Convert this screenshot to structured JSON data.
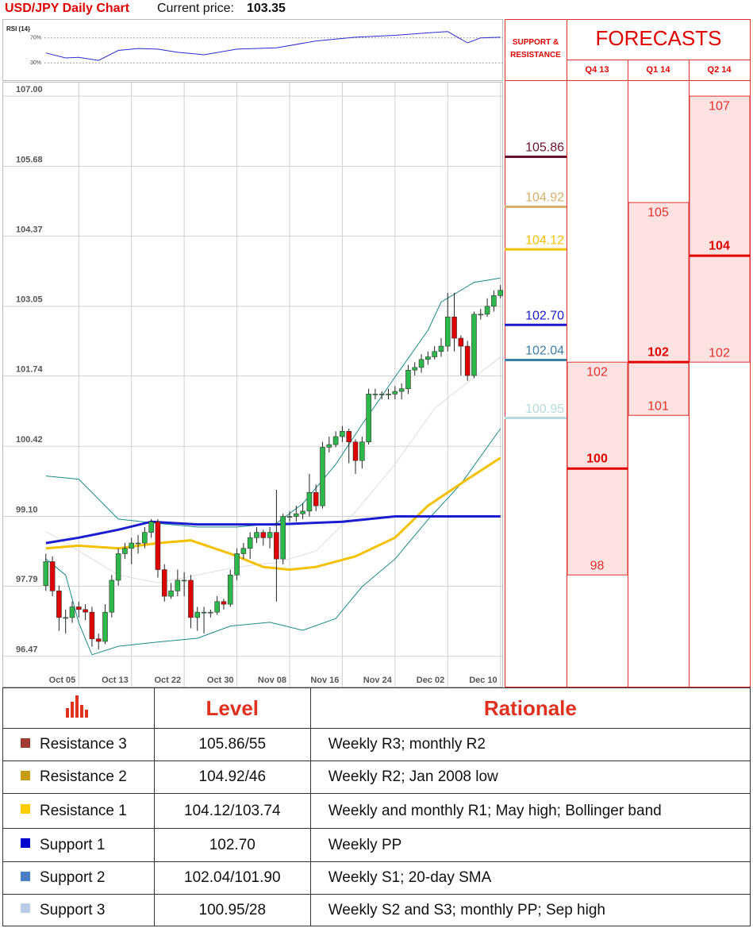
{
  "header": {
    "title": "USD/JPY Daily Chart",
    "price_label": "Current price:",
    "price": 103.35
  },
  "chart_data": [
    {
      "type": "candlestick",
      "categories": [
        null,
        null,
        null,
        null,
        null,
        "Oct 05",
        null,
        null,
        null,
        null,
        null,
        null,
        null,
        "Oct 13",
        null,
        null,
        null,
        null,
        null,
        null,
        null,
        "Oct 22",
        null,
        null,
        null,
        null,
        null,
        null,
        null,
        "Oct 30",
        null,
        null,
        null,
        null,
        null,
        null,
        null,
        "Nov 08",
        null,
        null,
        null,
        null,
        null,
        null,
        null,
        "Nov 16",
        null,
        null,
        null,
        null,
        null,
        null,
        null,
        "Nov 24",
        null,
        null,
        null,
        null,
        null,
        null,
        null,
        "Dec 02",
        null,
        null,
        null,
        null,
        null,
        null,
        null,
        "Dec 10"
      ],
      "open": [
        97.8,
        98.25,
        97.7,
        97.2,
        97.2,
        97.4,
        97.35,
        97.3,
        96.8,
        96.75,
        97.3,
        97.9,
        98.4,
        98.5,
        98.6,
        98.6,
        98.8,
        99.0,
        98.1,
        97.6,
        97.7,
        97.9,
        97.9,
        97.2,
        97.3,
        97.3,
        97.3,
        97.5,
        97.45,
        98.0,
        98.4,
        98.5,
        98.7,
        98.8,
        98.7,
        98.8,
        98.3,
        99.1,
        99.1,
        99.15,
        99.2,
        99.55,
        99.3,
        100.4,
        100.45,
        100.6,
        100.7,
        100.5,
        100.15,
        100.5,
        101.4,
        101.4,
        101.4,
        101.4,
        101.45,
        101.5,
        101.85,
        101.9,
        102.05,
        102.1,
        102.2,
        102.3,
        102.85,
        102.45,
        102.3,
        101.75,
        102.9,
        102.9,
        103.05,
        103.25
      ],
      "high": [
        98.4,
        98.35,
        97.8,
        97.35,
        97.5,
        97.5,
        97.45,
        97.4,
        96.9,
        97.45,
        98.0,
        98.5,
        98.6,
        98.7,
        98.75,
        98.9,
        99.05,
        99.05,
        98.2,
        97.85,
        98.1,
        98.05,
        98.0,
        97.4,
        97.4,
        97.35,
        97.6,
        97.55,
        98.1,
        98.5,
        98.6,
        98.8,
        98.9,
        98.85,
        98.9,
        99.6,
        99.15,
        99.2,
        99.3,
        99.35,
        99.9,
        99.7,
        100.5,
        100.6,
        100.7,
        100.8,
        100.75,
        100.55,
        100.6,
        101.5,
        101.5,
        101.45,
        101.5,
        101.55,
        101.6,
        101.95,
        102.0,
        102.15,
        102.2,
        102.3,
        102.45,
        103.3,
        103.3,
        102.5,
        102.4,
        102.95,
        103.0,
        103.2,
        103.35,
        103.45
      ],
      "low": [
        97.7,
        97.6,
        96.95,
        96.9,
        97.1,
        97.2,
        97.15,
        96.65,
        96.6,
        96.7,
        97.2,
        97.8,
        98.3,
        98.2,
        98.4,
        98.5,
        98.7,
        97.95,
        97.5,
        97.55,
        97.6,
        97.6,
        97.0,
        96.95,
        96.9,
        97.2,
        97.25,
        97.35,
        97.4,
        97.9,
        98.3,
        98.3,
        98.6,
        98.55,
        98.5,
        97.5,
        98.2,
        99.0,
        99.0,
        99.05,
        99.1,
        99.2,
        99.25,
        100.3,
        100.4,
        100.5,
        100.1,
        99.9,
        100.0,
        100.45,
        101.3,
        101.3,
        101.3,
        101.3,
        101.3,
        101.4,
        101.75,
        101.8,
        101.95,
        102.05,
        102.1,
        102.2,
        102.2,
        101.75,
        101.65,
        101.7,
        102.8,
        102.85,
        102.95,
        103.2
      ],
      "close": [
        98.25,
        97.7,
        97.2,
        97.2,
        97.4,
        97.35,
        97.3,
        96.8,
        96.75,
        97.3,
        97.9,
        98.4,
        98.5,
        98.6,
        98.6,
        98.8,
        99.0,
        98.1,
        97.6,
        97.7,
        97.9,
        97.9,
        97.2,
        97.3,
        97.3,
        97.3,
        97.5,
        97.45,
        98.0,
        98.4,
        98.5,
        98.7,
        98.8,
        98.7,
        98.8,
        98.3,
        99.1,
        99.1,
        99.15,
        99.2,
        99.55,
        99.3,
        100.4,
        100.45,
        100.6,
        100.7,
        100.5,
        100.15,
        100.5,
        101.4,
        101.4,
        101.4,
        101.4,
        101.45,
        101.5,
        101.85,
        101.9,
        102.05,
        102.1,
        102.2,
        102.3,
        102.85,
        102.45,
        102.3,
        101.75,
        102.9,
        102.9,
        103.05,
        103.25,
        103.35
      ],
      "up_color": "#2db84b",
      "down_color": "#e00000",
      "bollinger_bands": [
        {
          "color": "#1a8a8a",
          "x": [
            0,
            5,
            11,
            17,
            23,
            29,
            35,
            39,
            44,
            48,
            53,
            58,
            60,
            65,
            69
          ],
          "values": [
            99.86,
            99.8,
            99.05,
            98.97,
            98.9,
            98.9,
            98.97,
            99.34,
            100.08,
            100.83,
            101.72,
            102.6,
            103.13,
            103.5,
            103.58
          ]
        },
        {
          "color": "#dddddd",
          "x": [
            0,
            5,
            11,
            17,
            23,
            29,
            35,
            41,
            47,
            53,
            59,
            65,
            69
          ],
          "values": [
            98.82,
            98.45,
            98.0,
            97.85,
            98.0,
            98.15,
            98.23,
            98.45,
            99.19,
            100.08,
            101.13,
            101.72,
            102.09
          ]
        },
        {
          "color": "#1a8a8a",
          "x": [
            0,
            3,
            5,
            7,
            11,
            17,
            23,
            28,
            34,
            39,
            44,
            48,
            53,
            58,
            63,
            69
          ],
          "values": [
            98.3,
            98.0,
            97.1,
            96.5,
            96.66,
            96.74,
            96.81,
            97.04,
            97.11,
            96.96,
            97.18,
            97.78,
            98.3,
            99.04,
            99.71,
            100.75
          ]
        }
      ],
      "moving_averages": [
        {
          "color": "#f5c000",
          "x": [
            0,
            5,
            11,
            17,
            22,
            28,
            33,
            37,
            41,
            47,
            53,
            58,
            64,
            69
          ],
          "values": [
            98.5,
            98.55,
            98.5,
            98.6,
            98.65,
            98.4,
            98.15,
            98.1,
            98.15,
            98.35,
            98.7,
            99.3,
            99.8,
            100.2
          ]
        },
        {
          "color": "#1c1cd0",
          "x": [
            0,
            5,
            11,
            16,
            23,
            35,
            45,
            53,
            69
          ],
          "values": [
            98.6,
            98.7,
            98.85,
            99.0,
            98.95,
            98.95,
            99.0,
            99.1,
            99.1
          ]
        }
      ],
      "xlim": [
        -6.6,
        69.4
      ],
      "ylim": [
        95.9,
        107.27
      ],
      "yticks": [
        96.47,
        97.79,
        {
          "value": 99.1,
          "label": "99.10"
        },
        100.42,
        101.74,
        103.05,
        104.37,
        105.68,
        {
          "value": 107,
          "label": "107.00"
        }
      ],
      "grid": true
    },
    {
      "type": "line",
      "label": "RSI (14)",
      "color": "#2a2ad0",
      "x": [
        0,
        3,
        5,
        8,
        11,
        14,
        17,
        20,
        24,
        29,
        35,
        41,
        47,
        53,
        58,
        61,
        64,
        66,
        69
      ],
      "values": [
        46,
        38,
        39,
        34,
        50,
        53,
        52,
        47,
        43,
        52,
        54,
        65,
        71,
        74,
        78,
        80,
        62,
        70,
        71
      ],
      "xlim": [
        -6.6,
        69.4
      ],
      "ylim": [
        0,
        100
      ],
      "yticks": [
        {
          "value": 30,
          "label": "30%"
        },
        {
          "value": 70,
          "label": "70%"
        }
      ]
    },
    {
      "type": "forecast",
      "title": "FORECASTS",
      "levels_title": "SUPPORT & RESISTANCE",
      "ylim": [
        95.9,
        107.27
      ],
      "levels": [
        {
          "value": 105.86,
          "color": "#6b1030"
        },
        {
          "value": 104.92,
          "color": "#d6b06a"
        },
        {
          "value": 104.12,
          "color": "#f5c000"
        },
        {
          "value": 102.7,
          "label": "102.70",
          "color": "#1a1acc"
        },
        {
          "value": 102.04,
          "color": "#3f7fa6"
        },
        {
          "value": 100.95,
          "color": "#b5dade"
        }
      ],
      "periods": [
        {
          "name": "Q4 13",
          "low": 98,
          "mid": 100,
          "high": 102
        },
        {
          "name": "Q1 14",
          "low": 101,
          "mid": 102,
          "high": 105
        },
        {
          "name": "Q2 14",
          "low": 102,
          "mid": 104,
          "high": 107
        }
      ],
      "color": "#e00000",
      "fill": "#fde2e2"
    }
  ],
  "table": {
    "header": [
      "Level",
      "Rationale"
    ],
    "rows": [
      {
        "color": "#a0392f",
        "name": "Resistance 3",
        "level": "105.86/55",
        "rationale": "Weekly R3; monthly R2"
      },
      {
        "color": "#c89a10",
        "name": "Resistance 2",
        "level": "104.92/46",
        "rationale": "Weekly R2; Jan 2008 low"
      },
      {
        "color": "#ffcc00",
        "name": "Resistance 1",
        "level": "104.12/103.74",
        "rationale": "Weekly and monthly R1; May high; Bollinger band"
      },
      {
        "color": "#0000cc",
        "name": "Support 1",
        "level": "102.70",
        "rationale": "Weekly PP"
      },
      {
        "color": "#4a7fbf",
        "name": "Support 2",
        "level": "102.04/101.90",
        "rationale": "Weekly S1; 20-day SMA"
      },
      {
        "color": "#b8cce4",
        "name": "Support 3",
        "level": "100.95/28",
        "rationale": "Weekly S2 and S3; monthly PP; Sep high"
      }
    ]
  }
}
